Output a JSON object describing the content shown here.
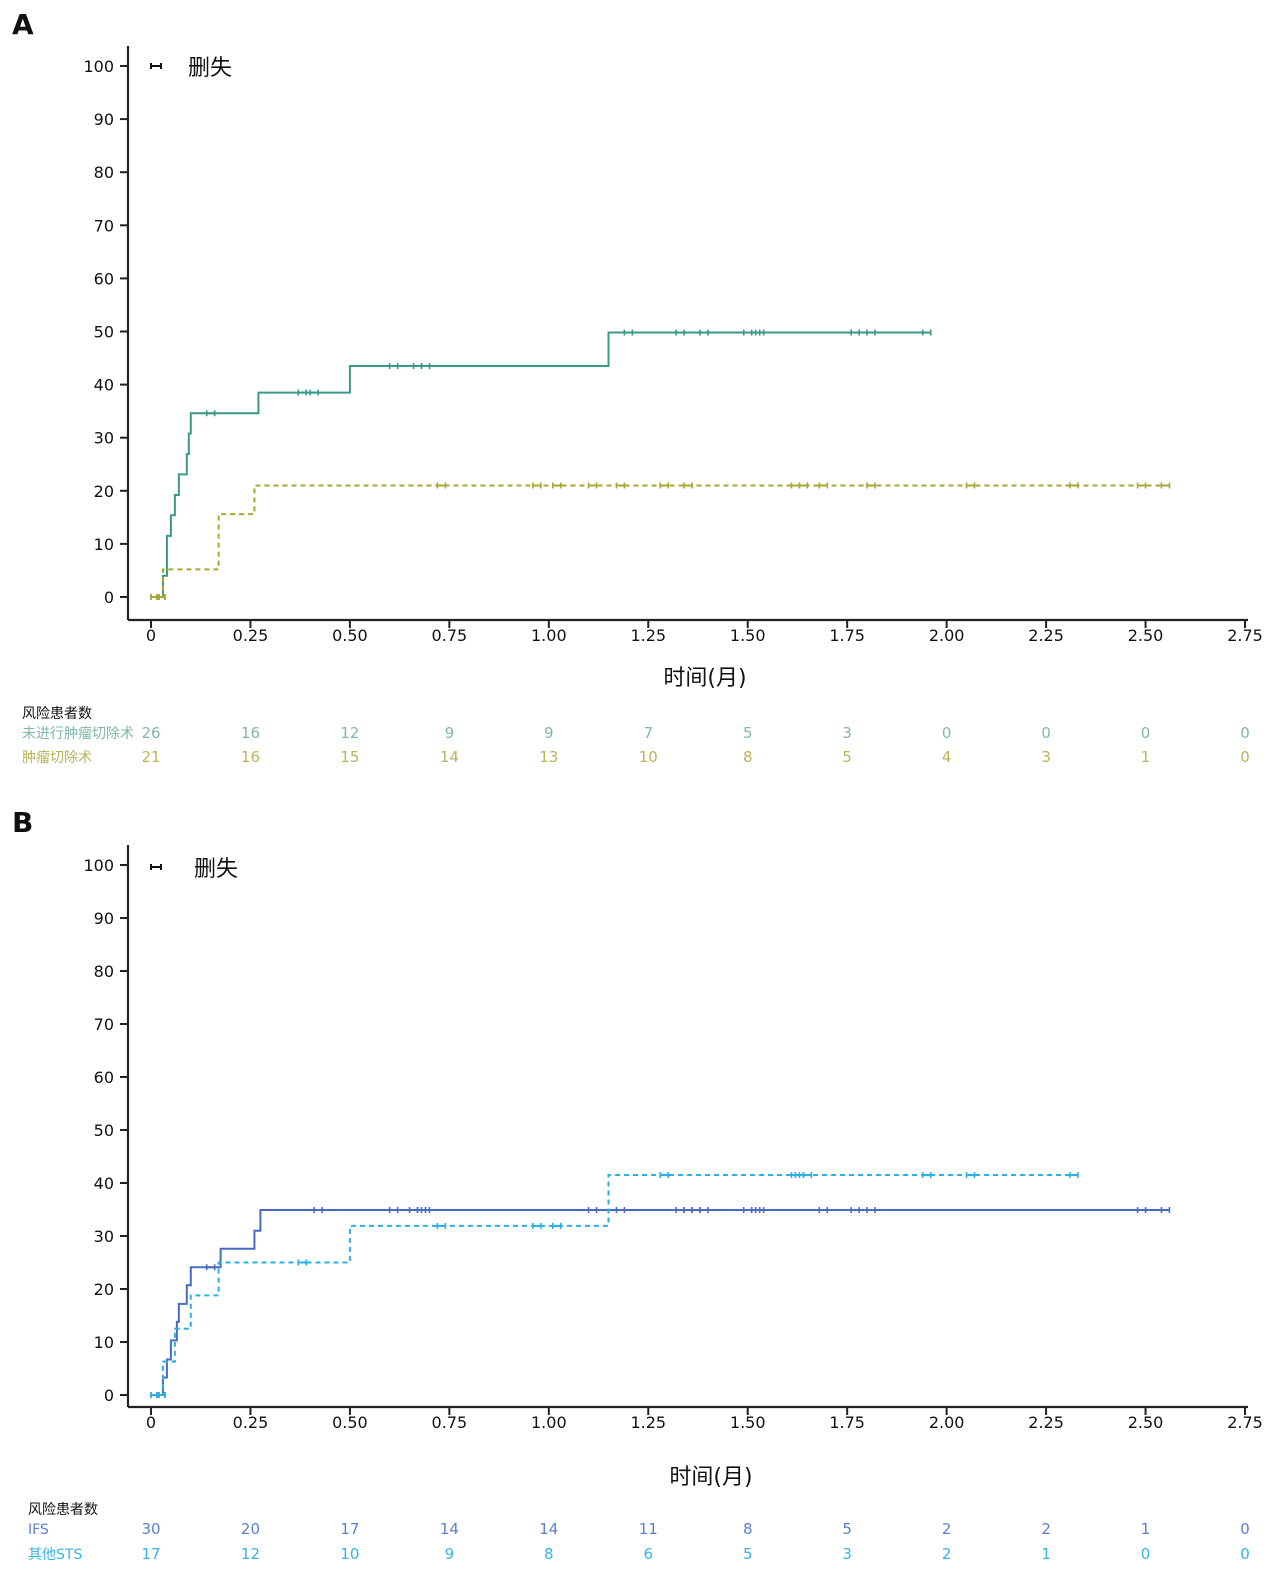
{
  "chart_data": [
    {
      "type": "line",
      "panel_label": "A",
      "xlabel": "时间(月)",
      "ylabel": "",
      "xlim": [
        0,
        2.75
      ],
      "ylim": [
        0,
        100
      ],
      "x_ticks": [
        "0",
        "0.25",
        "0.50",
        "0.75",
        "1.00",
        "1.25",
        "1.50",
        "1.75",
        "2.00",
        "2.25",
        "2.50",
        "2.75"
      ],
      "y_ticks": [
        "0",
        "10",
        "20",
        "30",
        "40",
        "50",
        "60",
        "70",
        "80",
        "90",
        "100"
      ],
      "legend": {
        "label": "删失",
        "position": "top-left"
      },
      "series": [
        {
          "name": "未进行肿瘤切除术",
          "color": "#3a9a86",
          "style": "solid",
          "steps": [
            [
              0,
              0
            ],
            [
              0.03,
              0
            ],
            [
              0.03,
              4
            ],
            [
              0.04,
              11.5
            ],
            [
              0.05,
              15.4
            ],
            [
              0.06,
              19.2
            ],
            [
              0.07,
              23.1
            ],
            [
              0.09,
              26.9
            ],
            [
              0.095,
              30.8
            ],
            [
              0.1,
              34.6
            ],
            [
              0.27,
              38.5
            ],
            [
              0.5,
              43.5
            ],
            [
              1.15,
              49.8
            ],
            [
              1.95,
              49.8
            ]
          ],
          "censors": [
            0.01,
            0.025,
            0.15,
            0.38,
            0.41,
            0.61,
            0.67,
            0.69,
            1.2,
            1.33,
            1.39,
            1.5,
            1.52,
            1.53,
            1.77,
            1.81,
            1.95
          ]
        },
        {
          "name": "肿瘤切除术",
          "color": "#a6a830",
          "style": "dashed",
          "steps": [
            [
              0,
              0
            ],
            [
              0.03,
              0
            ],
            [
              0.03,
              5.2
            ],
            [
              0.17,
              15.6
            ],
            [
              0.26,
              21
            ],
            [
              2.55,
              21
            ]
          ],
          "censors": [
            0.01,
            0.025,
            0.73,
            0.97,
            1.02,
            1.11,
            1.18,
            1.29,
            1.35,
            1.62,
            1.64,
            1.69,
            1.81,
            2.06,
            2.32,
            2.49,
            2.55
          ]
        }
      ],
      "risk_table": {
        "title": "风险患者数",
        "rows": [
          {
            "label": "未进行肿瘤切除术",
            "color": "#7fb8ab",
            "values": [
              "26",
              "16",
              "12",
              "9",
              "9",
              "7",
              "5",
              "3",
              "0",
              "0",
              "0",
              "0"
            ]
          },
          {
            "label": "肿瘤切除术",
            "color": "#b9b55a",
            "values": [
              "21",
              "16",
              "15",
              "14",
              "13",
              "10",
              "8",
              "5",
              "4",
              "3",
              "1",
              "0"
            ]
          }
        ]
      }
    },
    {
      "type": "line",
      "panel_label": "B",
      "xlabel": "时间(月)",
      "ylabel": "",
      "xlim": [
        0,
        2.75
      ],
      "ylim": [
        0,
        100
      ],
      "x_ticks": [
        "0",
        "0.25",
        "0.50",
        "0.75",
        "1.00",
        "1.25",
        "1.50",
        "1.75",
        "2.00",
        "2.25",
        "2.50",
        "2.75"
      ],
      "y_ticks": [
        "0",
        "10",
        "20",
        "30",
        "40",
        "50",
        "60",
        "70",
        "80",
        "90",
        "100"
      ],
      "legend": {
        "label": "删失",
        "position": "top-left"
      },
      "series": [
        {
          "name": "IFS",
          "color": "#4a6bc4",
          "style": "solid",
          "steps": [
            [
              0,
              0
            ],
            [
              0.03,
              0
            ],
            [
              0.03,
              3.3
            ],
            [
              0.04,
              6.7
            ],
            [
              0.05,
              10.3
            ],
            [
              0.065,
              13.8
            ],
            [
              0.07,
              17.2
            ],
            [
              0.09,
              20.7
            ],
            [
              0.1,
              24.1
            ],
            [
              0.175,
              27.6
            ],
            [
              0.26,
              31
            ],
            [
              0.275,
              34.9
            ],
            [
              2.55,
              34.9
            ]
          ],
          "censors": [
            0.01,
            0.025,
            0.15,
            0.42,
            0.61,
            0.66,
            0.68,
            0.69,
            1.11,
            1.18,
            1.33,
            1.35,
            1.37,
            1.39,
            1.5,
            1.52,
            1.53,
            1.69,
            1.77,
            1.81,
            2.49,
            2.55
          ]
        },
        {
          "name": "其他STS",
          "color": "#2ab0e3",
          "style": "dashed",
          "steps": [
            [
              0,
              0
            ],
            [
              0.03,
              0
            ],
            [
              0.03,
              6.3
            ],
            [
              0.06,
              12.5
            ],
            [
              0.1,
              18.8
            ],
            [
              0.17,
              25
            ],
            [
              0.5,
              31.9
            ],
            [
              1.15,
              41.5
            ],
            [
              2.32,
              41.5
            ]
          ],
          "censors": [
            0.01,
            0.025,
            0.38,
            0.73,
            0.97,
            1.02,
            1.29,
            1.62,
            1.63,
            1.65,
            1.95,
            2.06,
            2.32
          ]
        }
      ],
      "risk_table": {
        "title": "风险患者数",
        "rows": [
          {
            "label": "IFS",
            "color": "#5b80cc",
            "values": [
              "30",
              "20",
              "17",
              "14",
              "14",
              "11",
              "8",
              "5",
              "2",
              "2",
              "1",
              "0"
            ]
          },
          {
            "label": "其他STS",
            "color": "#36b4e6",
            "values": [
              "17",
              "12",
              "10",
              "9",
              "8",
              "6",
              "5",
              "3",
              "2",
              "1",
              "0",
              "0"
            ]
          }
        ]
      }
    }
  ]
}
